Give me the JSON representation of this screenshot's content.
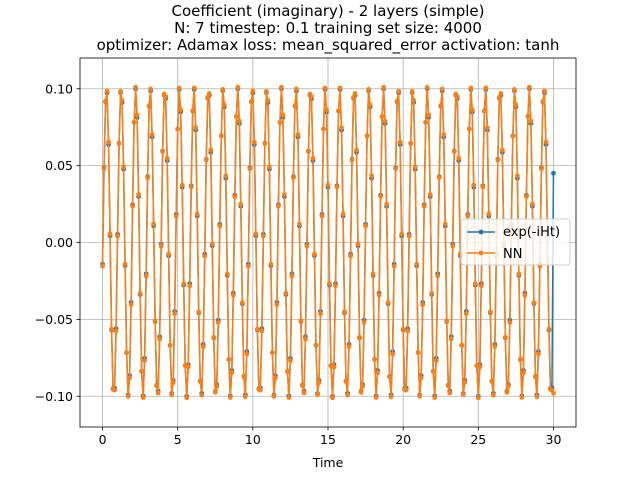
{
  "chart_data": {
    "type": "line",
    "title": [
      "Coefficient (imaginary) - 2 layers (simple)",
      "N: 7 timestep: 0.1 training set size: 4000",
      "optimizer: Adamax loss: mean_squared_error activation: tanh"
    ],
    "xlabel": "Time",
    "ylabel": "",
    "xlim": [
      -1.5,
      31.5
    ],
    "ylim": [
      -0.12,
      0.12
    ],
    "xticks": [
      0,
      5,
      10,
      15,
      20,
      25,
      30
    ],
    "xtick_labels": [
      "0",
      "5",
      "10",
      "15",
      "20",
      "25",
      "30"
    ],
    "yticks": [
      -0.1,
      -0.05,
      0.0,
      0.05,
      0.1
    ],
    "ytick_labels": [
      "−0.10",
      "−0.05",
      "0.00",
      "0.05",
      "0.10"
    ],
    "grid": true,
    "legend": "center-right",
    "x_sampling": {
      "start": 0.0,
      "end": 30.0,
      "step": 0.1
    },
    "series": [
      {
        "name": "exp(-iHt)",
        "color": "#1f77b4",
        "marker": "dot",
        "description": "oscillation between about -0.10 and 0.10 with period about 0.97, starting at -0.014 at t=0 and ending at 0.045 at t=30"
      },
      {
        "name": "NN",
        "color": "#ff7f0e",
        "marker": "dot",
        "description": "network prediction closely overlapping exp(-iHt) for all t < 30"
      }
    ],
    "model": {
      "amplitude": 0.1,
      "period": 0.97,
      "phase_value_t0": -0.014,
      "nn_amplitude": 0.101,
      "final_point_exact": {
        "x": 30.0,
        "y": 0.045
      },
      "final_point_nn": {
        "x": 30.0,
        "y": -0.098
      }
    }
  }
}
